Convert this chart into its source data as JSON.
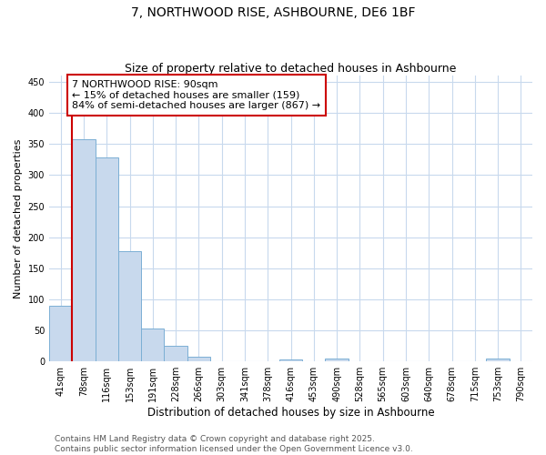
{
  "title1": "7, NORTHWOOD RISE, ASHBOURNE, DE6 1BF",
  "title2": "Size of property relative to detached houses in Ashbourne",
  "xlabel": "Distribution of detached houses by size in Ashbourne",
  "ylabel": "Number of detached properties",
  "bins": [
    "41sqm",
    "78sqm",
    "116sqm",
    "153sqm",
    "191sqm",
    "228sqm",
    "266sqm",
    "303sqm",
    "341sqm",
    "378sqm",
    "416sqm",
    "453sqm",
    "490sqm",
    "528sqm",
    "565sqm",
    "603sqm",
    "640sqm",
    "678sqm",
    "715sqm",
    "753sqm",
    "790sqm"
  ],
  "values": [
    90,
    358,
    328,
    178,
    53,
    25,
    8,
    0,
    0,
    0,
    3,
    0,
    4,
    0,
    0,
    0,
    0,
    0,
    0,
    4,
    0
  ],
  "bar_color": "#c8d9ed",
  "bar_edge_color": "#7bafd4",
  "vline_color": "#cc0000",
  "vline_x_index": 1,
  "annotation_text_line1": "7 NORTHWOOD RISE: 90sqm",
  "annotation_text_line2": "← 15% of detached houses are smaller (159)",
  "annotation_text_line3": "84% of semi-detached houses are larger (867) →",
  "annotation_box_edgecolor": "#cc0000",
  "ylim": [
    0,
    460
  ],
  "yticks": [
    0,
    50,
    100,
    150,
    200,
    250,
    300,
    350,
    400,
    450
  ],
  "footer1": "Contains HM Land Registry data © Crown copyright and database right 2025.",
  "footer2": "Contains public sector information licensed under the Open Government Licence v3.0.",
  "bg_color": "#ffffff",
  "grid_color": "#c8d9ed",
  "title1_fontsize": 10,
  "title2_fontsize": 9,
  "xlabel_fontsize": 8.5,
  "ylabel_fontsize": 8,
  "tick_fontsize": 7,
  "annotation_fontsize": 8,
  "footer_fontsize": 6.5
}
